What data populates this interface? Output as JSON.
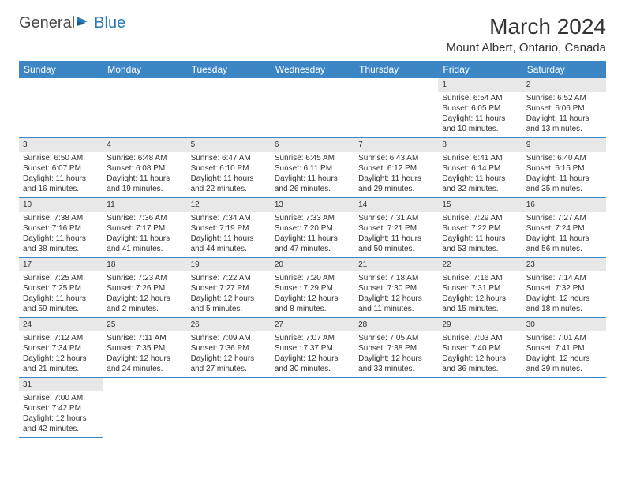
{
  "brand": {
    "part1": "General",
    "part2": "Blue"
  },
  "title": "March 2024",
  "location": "Mount Albert, Ontario, Canada",
  "colors": {
    "header_bg": "#3d86c6",
    "header_fg": "#ffffff",
    "daynum_bg": "#e8e8e8",
    "rule": "#3d86c6",
    "brand_blue": "#2a7ab8"
  },
  "day_headers": [
    "Sunday",
    "Monday",
    "Tuesday",
    "Wednesday",
    "Thursday",
    "Friday",
    "Saturday"
  ],
  "weeks": [
    [
      null,
      null,
      null,
      null,
      null,
      {
        "n": "1",
        "sr": "Sunrise: 6:54 AM",
        "ss": "Sunset: 6:05 PM",
        "d1": "Daylight: 11 hours",
        "d2": "and 10 minutes."
      },
      {
        "n": "2",
        "sr": "Sunrise: 6:52 AM",
        "ss": "Sunset: 6:06 PM",
        "d1": "Daylight: 11 hours",
        "d2": "and 13 minutes."
      }
    ],
    [
      {
        "n": "3",
        "sr": "Sunrise: 6:50 AM",
        "ss": "Sunset: 6:07 PM",
        "d1": "Daylight: 11 hours",
        "d2": "and 16 minutes."
      },
      {
        "n": "4",
        "sr": "Sunrise: 6:48 AM",
        "ss": "Sunset: 6:08 PM",
        "d1": "Daylight: 11 hours",
        "d2": "and 19 minutes."
      },
      {
        "n": "5",
        "sr": "Sunrise: 6:47 AM",
        "ss": "Sunset: 6:10 PM",
        "d1": "Daylight: 11 hours",
        "d2": "and 22 minutes."
      },
      {
        "n": "6",
        "sr": "Sunrise: 6:45 AM",
        "ss": "Sunset: 6:11 PM",
        "d1": "Daylight: 11 hours",
        "d2": "and 26 minutes."
      },
      {
        "n": "7",
        "sr": "Sunrise: 6:43 AM",
        "ss": "Sunset: 6:12 PM",
        "d1": "Daylight: 11 hours",
        "d2": "and 29 minutes."
      },
      {
        "n": "8",
        "sr": "Sunrise: 6:41 AM",
        "ss": "Sunset: 6:14 PM",
        "d1": "Daylight: 11 hours",
        "d2": "and 32 minutes."
      },
      {
        "n": "9",
        "sr": "Sunrise: 6:40 AM",
        "ss": "Sunset: 6:15 PM",
        "d1": "Daylight: 11 hours",
        "d2": "and 35 minutes."
      }
    ],
    [
      {
        "n": "10",
        "sr": "Sunrise: 7:38 AM",
        "ss": "Sunset: 7:16 PM",
        "d1": "Daylight: 11 hours",
        "d2": "and 38 minutes."
      },
      {
        "n": "11",
        "sr": "Sunrise: 7:36 AM",
        "ss": "Sunset: 7:17 PM",
        "d1": "Daylight: 11 hours",
        "d2": "and 41 minutes."
      },
      {
        "n": "12",
        "sr": "Sunrise: 7:34 AM",
        "ss": "Sunset: 7:19 PM",
        "d1": "Daylight: 11 hours",
        "d2": "and 44 minutes."
      },
      {
        "n": "13",
        "sr": "Sunrise: 7:33 AM",
        "ss": "Sunset: 7:20 PM",
        "d1": "Daylight: 11 hours",
        "d2": "and 47 minutes."
      },
      {
        "n": "14",
        "sr": "Sunrise: 7:31 AM",
        "ss": "Sunset: 7:21 PM",
        "d1": "Daylight: 11 hours",
        "d2": "and 50 minutes."
      },
      {
        "n": "15",
        "sr": "Sunrise: 7:29 AM",
        "ss": "Sunset: 7:22 PM",
        "d1": "Daylight: 11 hours",
        "d2": "and 53 minutes."
      },
      {
        "n": "16",
        "sr": "Sunrise: 7:27 AM",
        "ss": "Sunset: 7:24 PM",
        "d1": "Daylight: 11 hours",
        "d2": "and 56 minutes."
      }
    ],
    [
      {
        "n": "17",
        "sr": "Sunrise: 7:25 AM",
        "ss": "Sunset: 7:25 PM",
        "d1": "Daylight: 11 hours",
        "d2": "and 59 minutes."
      },
      {
        "n": "18",
        "sr": "Sunrise: 7:23 AM",
        "ss": "Sunset: 7:26 PM",
        "d1": "Daylight: 12 hours",
        "d2": "and 2 minutes."
      },
      {
        "n": "19",
        "sr": "Sunrise: 7:22 AM",
        "ss": "Sunset: 7:27 PM",
        "d1": "Daylight: 12 hours",
        "d2": "and 5 minutes."
      },
      {
        "n": "20",
        "sr": "Sunrise: 7:20 AM",
        "ss": "Sunset: 7:29 PM",
        "d1": "Daylight: 12 hours",
        "d2": "and 8 minutes."
      },
      {
        "n": "21",
        "sr": "Sunrise: 7:18 AM",
        "ss": "Sunset: 7:30 PM",
        "d1": "Daylight: 12 hours",
        "d2": "and 11 minutes."
      },
      {
        "n": "22",
        "sr": "Sunrise: 7:16 AM",
        "ss": "Sunset: 7:31 PM",
        "d1": "Daylight: 12 hours",
        "d2": "and 15 minutes."
      },
      {
        "n": "23",
        "sr": "Sunrise: 7:14 AM",
        "ss": "Sunset: 7:32 PM",
        "d1": "Daylight: 12 hours",
        "d2": "and 18 minutes."
      }
    ],
    [
      {
        "n": "24",
        "sr": "Sunrise: 7:12 AM",
        "ss": "Sunset: 7:34 PM",
        "d1": "Daylight: 12 hours",
        "d2": "and 21 minutes."
      },
      {
        "n": "25",
        "sr": "Sunrise: 7:11 AM",
        "ss": "Sunset: 7:35 PM",
        "d1": "Daylight: 12 hours",
        "d2": "and 24 minutes."
      },
      {
        "n": "26",
        "sr": "Sunrise: 7:09 AM",
        "ss": "Sunset: 7:36 PM",
        "d1": "Daylight: 12 hours",
        "d2": "and 27 minutes."
      },
      {
        "n": "27",
        "sr": "Sunrise: 7:07 AM",
        "ss": "Sunset: 7:37 PM",
        "d1": "Daylight: 12 hours",
        "d2": "and 30 minutes."
      },
      {
        "n": "28",
        "sr": "Sunrise: 7:05 AM",
        "ss": "Sunset: 7:38 PM",
        "d1": "Daylight: 12 hours",
        "d2": "and 33 minutes."
      },
      {
        "n": "29",
        "sr": "Sunrise: 7:03 AM",
        "ss": "Sunset: 7:40 PM",
        "d1": "Daylight: 12 hours",
        "d2": "and 36 minutes."
      },
      {
        "n": "30",
        "sr": "Sunrise: 7:01 AM",
        "ss": "Sunset: 7:41 PM",
        "d1": "Daylight: 12 hours",
        "d2": "and 39 minutes."
      }
    ],
    [
      {
        "n": "31",
        "sr": "Sunrise: 7:00 AM",
        "ss": "Sunset: 7:42 PM",
        "d1": "Daylight: 12 hours",
        "d2": "and 42 minutes."
      },
      null,
      null,
      null,
      null,
      null,
      null
    ]
  ]
}
